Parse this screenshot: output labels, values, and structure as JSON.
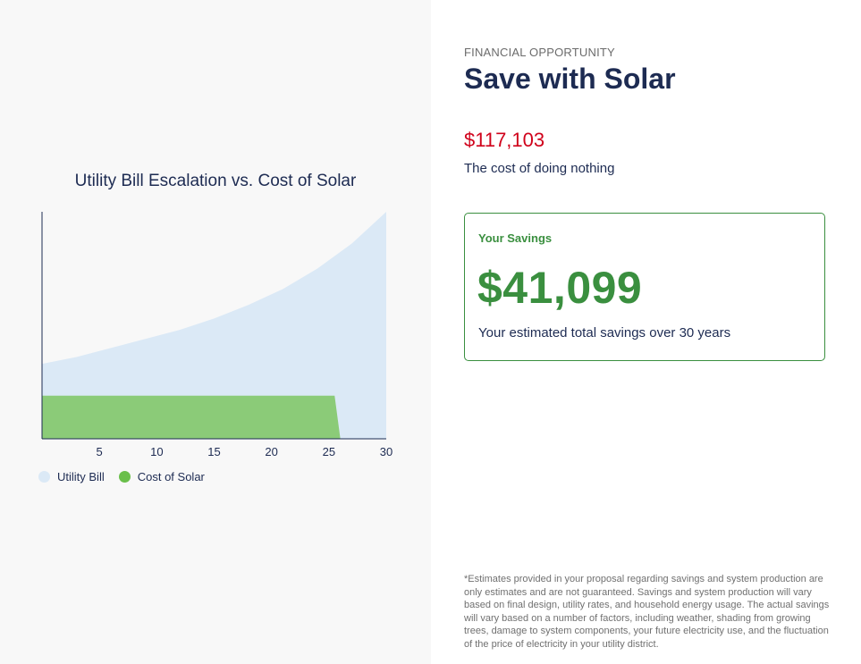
{
  "chart": {
    "title": "Utility Bill Escalation vs. Cost of Solar",
    "legend": [
      {
        "label": "Utility Bill",
        "color": "#dbe9f6"
      },
      {
        "label": "Cost of Solar",
        "color": "#6abf4b"
      }
    ]
  },
  "chart_data": {
    "type": "area",
    "title": "Utility Bill Escalation vs. Cost of Solar",
    "xlabel": "",
    "ylabel": "",
    "xlim": [
      0,
      30
    ],
    "x_ticks": [
      5,
      10,
      15,
      20,
      25,
      30
    ],
    "grid": false,
    "legend_position": "bottom-left",
    "series": [
      {
        "name": "Utility Bill",
        "color": "#dbe9f6",
        "x": [
          0,
          3,
          6,
          9,
          12,
          15,
          18,
          21,
          24,
          27,
          30
        ],
        "values": [
          0.33,
          0.36,
          0.4,
          0.44,
          0.48,
          0.53,
          0.59,
          0.66,
          0.75,
          0.86,
          1.0
        ]
      },
      {
        "name": "Cost of Solar",
        "color": "#8bcb78",
        "x": [
          0,
          25,
          25.5,
          26,
          30
        ],
        "values": [
          0.19,
          0.19,
          0.19,
          0.0,
          0.0
        ]
      }
    ]
  },
  "panel": {
    "eyebrow": "FINANCIAL OPPORTUNITY",
    "headline": "Save with Solar",
    "cost_value": "$117,103",
    "cost_caption": "The cost of doing nothing",
    "savings_label": "Your Savings",
    "savings_value": "$41,099",
    "savings_caption": "Your estimated total savings over 30 years",
    "disclaimer": "*Estimates provided in your proposal regarding savings and system production are only estimates and are not guaranteed. Savings and system production will vary based on final design, utility rates, and household energy usage. The actual savings will vary based on a number of factors, including weather, shading from growing trees, damage to system components, your future electricity use, and the fluctuation of the price of electricity in your utility district."
  }
}
